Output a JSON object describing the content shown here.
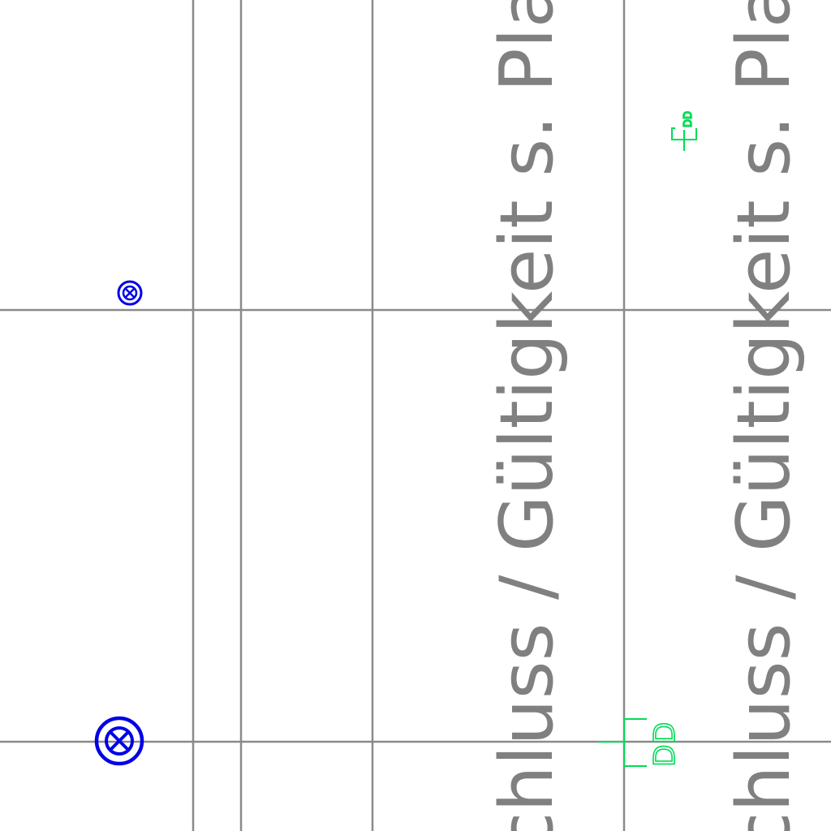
{
  "drawing": {
    "annotation_line_1": "chluss / Gültigkeit s. Plannu",
    "annotation_line_2": "chluss / Gültigkeit s. Plannu",
    "small_marker_label": "DD",
    "large_marker_label": "DD"
  },
  "colors": {
    "grid": "#8a8a8a",
    "annotation_text": "#808080",
    "valve_symbol": "#0000e6",
    "marker_symbol": "#00dd55",
    "background": "#ffffff"
  },
  "icons": {
    "valve_small": "circled-x-icon",
    "valve_large": "circled-x-icon",
    "marker_small": "bracket-marker-icon",
    "marker_large": "bracket-marker-icon"
  }
}
